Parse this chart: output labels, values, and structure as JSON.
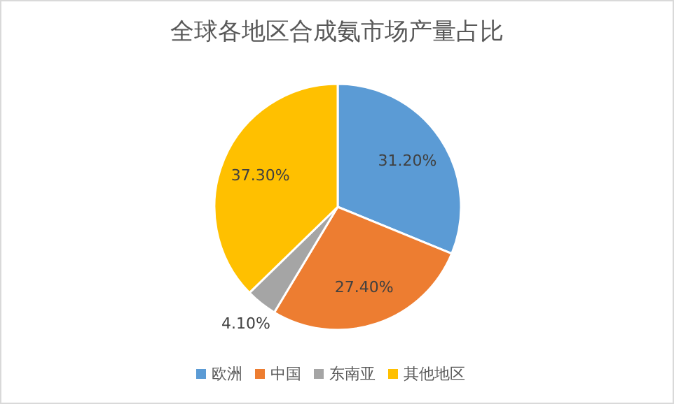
{
  "chart_data": {
    "type": "pie",
    "title": "全球各地区合成氨市场产量占比",
    "categories": [
      "欧洲",
      "中国",
      "东南亚",
      "其他地区"
    ],
    "values": [
      31.2,
      27.4,
      4.1,
      37.3
    ],
    "colors": [
      "#5b9bd5",
      "#ed7d31",
      "#a5a5a5",
      "#ffc000"
    ],
    "value_labels": [
      "31.20%",
      "27.40%",
      "4.10%",
      "37.30%"
    ],
    "legend": "bottom"
  }
}
